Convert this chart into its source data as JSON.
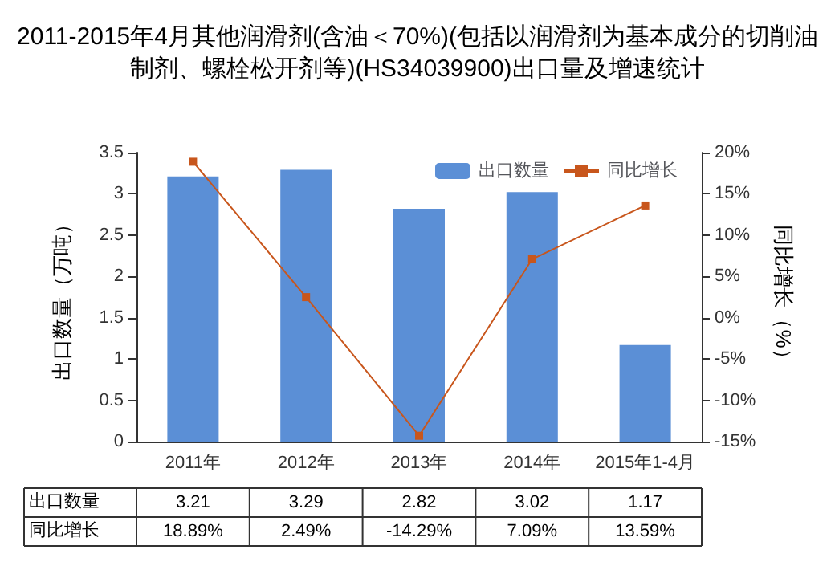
{
  "chart_data": {
    "type": "bar",
    "title": "2011-2015年4月其他润滑剂(含油＜70%)(包括以润滑剂为基本成分的切削油制剂、螺栓松开剂等)(HS34039900)出口量及增速统计",
    "categories": [
      "2011年",
      "2012年",
      "2013年",
      "2014年",
      "2015年1-4月"
    ],
    "series": [
      {
        "name": "出口数量",
        "color": "#5b8fd6",
        "values": [
          3.21,
          3.29,
          2.82,
          3.02,
          1.17
        ],
        "value_labels": [
          "3.21",
          "3.29",
          "2.82",
          "3.02",
          "1.17"
        ]
      },
      {
        "name": "同比增长",
        "type": "line",
        "axis": "y2",
        "color": "#c8561c",
        "values": [
          18.89,
          2.49,
          -14.29,
          7.09,
          13.59
        ],
        "value_labels": [
          "18.89%",
          "2.49%",
          "-14.29%",
          "7.09%",
          "13.59%"
        ]
      }
    ],
    "ylabel": "出口数量（万吨）",
    "y2label": "同比增长（%）",
    "ylim": [
      0,
      3.5
    ],
    "yticks": [
      0,
      0.5,
      1,
      1.5,
      2,
      2.5,
      3,
      3.5
    ],
    "y2lim": [
      -15,
      20
    ],
    "y2ticks": [
      {
        "value": -15,
        "label": "-15%"
      },
      {
        "value": -10,
        "label": "-10%"
      },
      {
        "value": -5,
        "label": "-5%"
      },
      {
        "value": 0,
        "label": "0%"
      },
      {
        "value": 5,
        "label": "5%"
      },
      {
        "value": 10,
        "label": "10%"
      },
      {
        "value": 15,
        "label": "15%"
      },
      {
        "value": 20,
        "label": "20%"
      }
    ],
    "grid": false,
    "legend": "top right",
    "marker": "square",
    "line_style": "solid"
  }
}
